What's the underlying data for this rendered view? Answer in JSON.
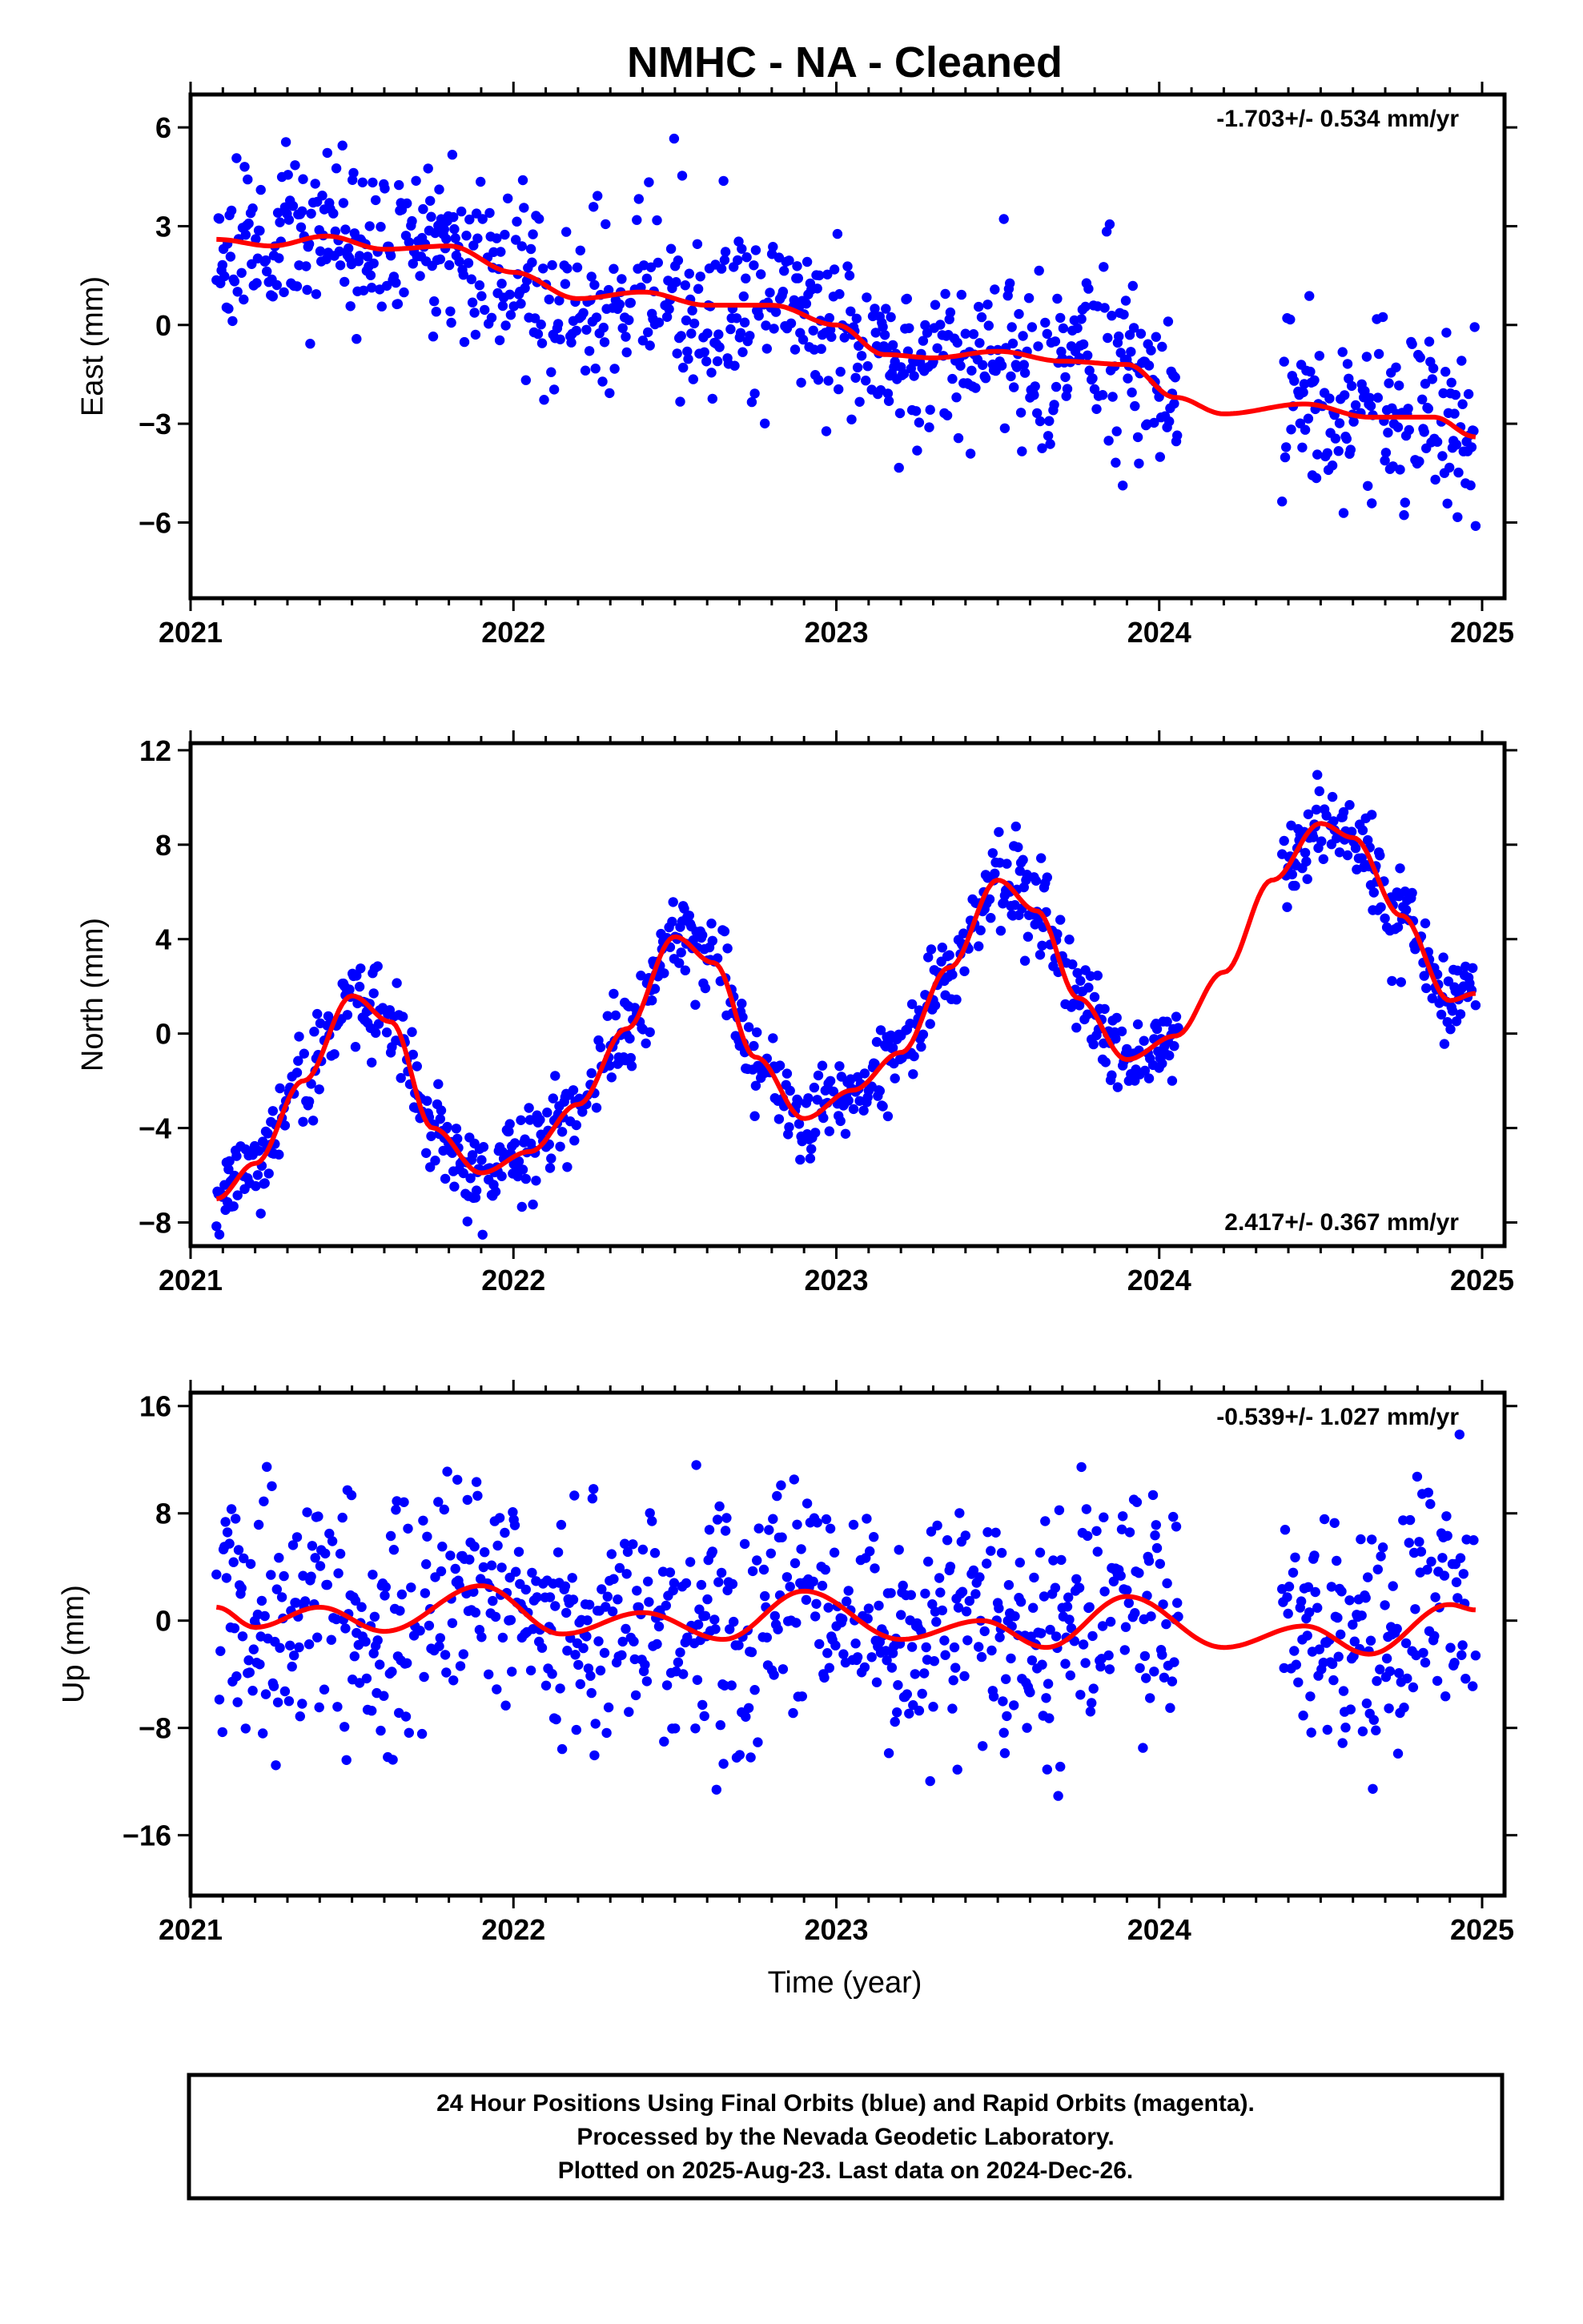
{
  "chart_data": [
    {
      "type": "scatter",
      "title": "NMHC  - NA - Cleaned",
      "ylabel": "East (mm)",
      "xlim": [
        2021,
        2025
      ],
      "ylim": [
        -8.3,
        7.0
      ],
      "yticks": [
        6,
        3,
        0,
        -3,
        -6
      ],
      "xticks": [
        2021,
        2022,
        2023,
        2024,
        2025
      ],
      "rate_text": "-1.703+/- 0.534 mm/yr",
      "series": [
        {
          "name": "Final Orbits (blue)",
          "color": "#0000ff",
          "gen": {
            "seed": 11,
            "start": 2021.08,
            "end": 2024.98,
            "gaps": [
              [
                2024.06,
                2024.38
              ]
            ],
            "noise": 1.3
          }
        },
        {
          "color": "#ff0000",
          "x": [
            2021.08,
            2021.25,
            2021.42,
            2021.6,
            2021.8,
            2022.0,
            2022.2,
            2022.4,
            2022.6,
            2022.8,
            2023.0,
            2023.15,
            2023.3,
            2023.5,
            2023.7,
            2023.9,
            2024.05,
            2024.2,
            2024.45,
            2024.65,
            2024.85,
            2024.98
          ],
          "y": [
            2.6,
            2.4,
            2.7,
            2.3,
            2.4,
            1.6,
            0.8,
            1.0,
            0.6,
            0.6,
            0.0,
            -0.9,
            -1.0,
            -0.8,
            -1.1,
            -1.2,
            -2.2,
            -2.7,
            -2.4,
            -2.8,
            -2.8,
            -3.4
          ]
        }
      ]
    },
    {
      "type": "scatter",
      "ylabel": "North (mm)",
      "xlim": [
        2021,
        2025
      ],
      "ylim": [
        -9.0,
        12.3
      ],
      "yticks": [
        12,
        8,
        4,
        0,
        -4,
        -8
      ],
      "xticks": [
        2021,
        2022,
        2023,
        2024,
        2025
      ],
      "rate_text": "2.417+/- 0.367 mm/yr",
      "series": [
        {
          "name": "Final Orbits (blue)",
          "color": "#0000ff",
          "gen": {
            "seed": 23,
            "start": 2021.08,
            "end": 2024.98,
            "gaps": [
              [
                2024.06,
                2024.38
              ]
            ],
            "noise": 0.9
          }
        },
        {
          "color": "#ff0000",
          "x": [
            2021.08,
            2021.2,
            2021.35,
            2021.5,
            2021.62,
            2021.75,
            2021.9,
            2022.05,
            2022.2,
            2022.35,
            2022.5,
            2022.62,
            2022.75,
            2022.9,
            2023.05,
            2023.2,
            2023.35,
            2023.5,
            2023.62,
            2023.75,
            2023.9,
            2024.05,
            2024.2,
            2024.35,
            2024.5,
            2024.6,
            2024.75,
            2024.9,
            2024.98
          ],
          "y": [
            -7.0,
            -5.5,
            -2.0,
            1.6,
            0.5,
            -4.0,
            -5.9,
            -5.0,
            -3.0,
            0.2,
            4.1,
            3.0,
            -1.0,
            -3.6,
            -2.4,
            -0.8,
            2.8,
            6.5,
            5.2,
            1.5,
            -1.1,
            -0.1,
            2.6,
            6.5,
            8.9,
            8.3,
            5.0,
            1.4,
            1.7
          ]
        }
      ]
    },
    {
      "type": "scatter",
      "ylabel": "Up (mm)",
      "xlabel": "Time (year)",
      "xlim": [
        2021,
        2025
      ],
      "ylim": [
        -20.5,
        17.0
      ],
      "yticks": [
        16,
        8,
        0,
        -8,
        -16
      ],
      "xticks": [
        2021,
        2022,
        2023,
        2024,
        2025
      ],
      "rate_text": "-0.539+/- 1.027 mm/yr",
      "series": [
        {
          "name": "Final Orbits (blue)",
          "color": "#0000ff",
          "gen": {
            "seed": 37,
            "start": 2021.08,
            "end": 2024.98,
            "gaps": [
              [
                2024.06,
                2024.38
              ]
            ],
            "noise": 4.5
          }
        },
        {
          "color": "#ff0000",
          "x": [
            2021.08,
            2021.2,
            2021.4,
            2021.6,
            2021.9,
            2022.15,
            2022.4,
            2022.65,
            2022.9,
            2023.2,
            2023.45,
            2023.65,
            2023.9,
            2024.2,
            2024.45,
            2024.65,
            2024.9,
            2024.98
          ],
          "y": [
            1.0,
            -0.5,
            1.0,
            -0.8,
            2.6,
            -1.0,
            0.6,
            -1.4,
            2.2,
            -1.4,
            0.0,
            -2.0,
            1.8,
            -2.0,
            -0.4,
            -2.5,
            1.2,
            0.8
          ]
        }
      ]
    }
  ],
  "footer": {
    "line1": "24 Hour Positions Using Final Orbits (blue) and Rapid Orbits (magenta).",
    "line2": "Processed by the Nevada Geodetic Laboratory.",
    "line3": "Plotted on 2025-Aug-23. Last data on 2024-Dec-26."
  }
}
